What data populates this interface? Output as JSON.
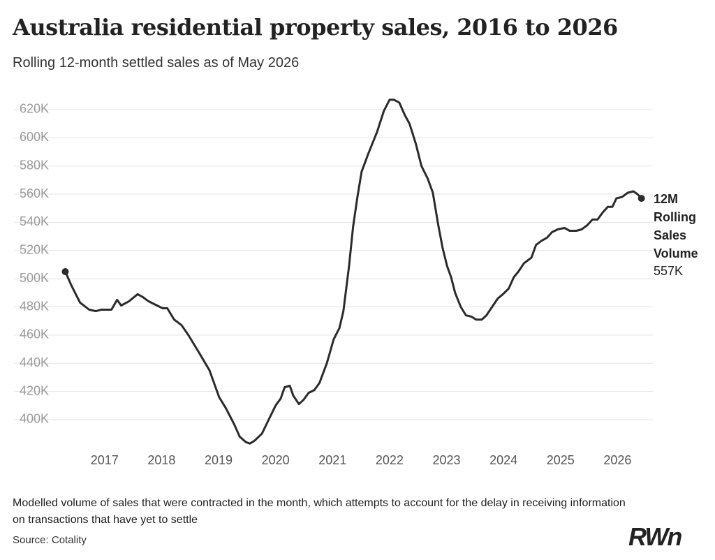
{
  "chart_data": {
    "type": "line",
    "title": "Australia residential property sales, 2016 to 2026",
    "subtitle": "Rolling 12-month settled sales as of May 2026",
    "note": "Modelled volume of sales that were contracted in the month, which attempts to account for the delay in receiving information on transactions that have yet to settle",
    "source": "Source: Cotality",
    "logo": "RWn",
    "x": [
      2016.31,
      2016.42,
      2016.57,
      2016.73,
      2016.85,
      2016.94,
      2017.12,
      2017.22,
      2017.29,
      2017.43,
      2017.58,
      2017.67,
      2017.77,
      2017.92,
      2018.02,
      2018.1,
      2018.22,
      2018.35,
      2018.47,
      2018.65,
      2018.84,
      2019.01,
      2019.13,
      2019.27,
      2019.37,
      2019.48,
      2019.55,
      2019.63,
      2019.76,
      2019.88,
      2020.0,
      2020.09,
      2020.16,
      2020.25,
      2020.31,
      2020.41,
      2020.49,
      2020.58,
      2020.68,
      2020.77,
      2020.9,
      2021.02,
      2021.12,
      2021.19,
      2021.29,
      2021.36,
      2021.44,
      2021.51,
      2021.63,
      2021.78,
      2021.9,
      2022.0,
      2022.08,
      2022.17,
      2022.27,
      2022.35,
      2022.46,
      2022.56,
      2022.67,
      2022.76,
      2022.85,
      2022.93,
      2023.01,
      2023.08,
      2023.15,
      2023.25,
      2023.34,
      2023.44,
      2023.52,
      2023.62,
      2023.7,
      2023.8,
      2023.9,
      2023.99,
      2024.09,
      2024.18,
      2024.26,
      2024.36,
      2024.49,
      2024.57,
      2024.67,
      2024.76,
      2024.85,
      2024.95,
      2025.07,
      2025.16,
      2025.28,
      2025.37,
      2025.47,
      2025.56,
      2025.65,
      2025.74,
      2025.83,
      2025.91,
      2025.98,
      2026.08,
      2026.18,
      2026.28,
      2026.35,
      2026.42
    ],
    "series": [
      {
        "name": "12M Rolling Sales Volume",
        "color": "#2b2b2b",
        "values": [
          505,
          495,
          483,
          478,
          477,
          478,
          478,
          485,
          481,
          484,
          489,
          487,
          484,
          481,
          479,
          479,
          471,
          467,
          460,
          448,
          435,
          416,
          408,
          397,
          388,
          384,
          383,
          385,
          390,
          400,
          410,
          415,
          423,
          424,
          417,
          411,
          414,
          419,
          421,
          426,
          440,
          457,
          465,
          477,
          509,
          537,
          559,
          576,
          589,
          604,
          619,
          627,
          627,
          625,
          616,
          610,
          596,
          580,
          571,
          561,
          539,
          522,
          509,
          501,
          490,
          480,
          474,
          473,
          471,
          471,
          474,
          480,
          486,
          489,
          493,
          501,
          505,
          511,
          515,
          524,
          527,
          529,
          533,
          535,
          536,
          534,
          534,
          535,
          538,
          542,
          542,
          547,
          551,
          551,
          557,
          558,
          561,
          562,
          560,
          557
        ],
        "last_value_label": "557K"
      }
    ],
    "xlim": [
      2015.41,
      2026.62
    ],
    "xticks": [
      2017,
      2018,
      2019,
      2020,
      2021,
      2022,
      2023,
      2024,
      2025,
      2026
    ],
    "ylim": [
      380,
      630
    ],
    "yticks": [
      {
        "value": 400,
        "label": "400K"
      },
      {
        "value": 420,
        "label": "420K"
      },
      {
        "value": 440,
        "label": "440K"
      },
      {
        "value": 460,
        "label": "460K"
      },
      {
        "value": 480,
        "label": "480K"
      },
      {
        "value": 500,
        "label": "500K"
      },
      {
        "value": 520,
        "label": "520K"
      },
      {
        "value": 540,
        "label": "540K"
      },
      {
        "value": 560,
        "label": "560K"
      },
      {
        "value": 580,
        "label": "580K"
      },
      {
        "value": 600,
        "label": "600K"
      },
      {
        "value": 620,
        "label": "620K"
      }
    ],
    "grid": true
  }
}
